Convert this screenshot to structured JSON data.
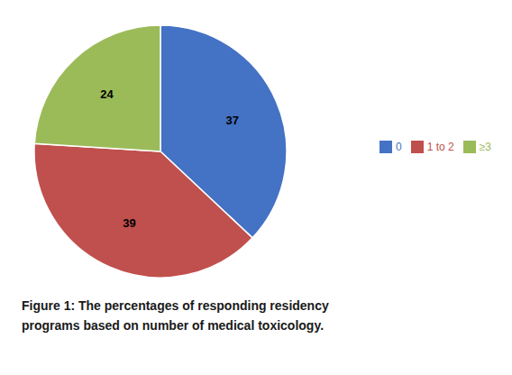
{
  "chart_data": {
    "type": "pie",
    "categories": [
      "0",
      "1 to 2",
      "≥3"
    ],
    "values": [
      37,
      39,
      24
    ],
    "colors": [
      "#4472C4",
      "#C0504D",
      "#9BBB59"
    ],
    "data_labels": true,
    "legend": "right",
    "annotations": [
      "Figure 1: The percentages of responding residency",
      "programs based on number of medical toxicology."
    ]
  }
}
